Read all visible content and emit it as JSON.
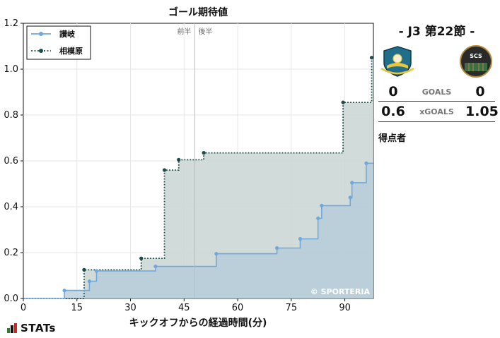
{
  "chart_data": {
    "type": "line",
    "title": "ゴール期待値",
    "xlabel": "キックオフからの経過時間(分)",
    "ylabel": "",
    "xlim": [
      0,
      98
    ],
    "ylim": [
      0,
      1.2
    ],
    "x_ticks": [
      "0",
      "15",
      "30",
      "45",
      "60",
      "75",
      "90"
    ],
    "x_tick_values": [
      0,
      15,
      30,
      45,
      60,
      75,
      90
    ],
    "y_ticks": [
      "0.0",
      "0.2",
      "0.4",
      "0.6",
      "0.8",
      "1.0",
      "1.2"
    ],
    "y_tick_values": [
      0,
      0.2,
      0.4,
      0.6,
      0.8,
      1.0,
      1.2
    ],
    "halftime": 48,
    "halftime_labels": {
      "first": "前半",
      "second": "後半"
    },
    "watermark": "© SPORTERIA",
    "legend_position": "top-left",
    "grid": true,
    "series": [
      {
        "name": "讃岐",
        "style": "solid",
        "color": "#6fa8dc",
        "fill": "#b3cbd9",
        "end": 0.59,
        "points": [
          [
            11.5,
            0.035
          ],
          [
            18.5,
            0.075
          ],
          [
            20.5,
            0.12
          ],
          [
            37.0,
            0.14
          ],
          [
            54.0,
            0.195
          ],
          [
            71.0,
            0.22
          ],
          [
            77.5,
            0.26
          ],
          [
            82.5,
            0.35
          ],
          [
            83.5,
            0.405
          ],
          [
            91.5,
            0.44
          ],
          [
            92.0,
            0.505
          ],
          [
            96.0,
            0.59
          ]
        ]
      },
      {
        "name": "相模原",
        "style": "dotted",
        "color": "#1e4d4a",
        "fill": "#c9d5d3",
        "end": 1.05,
        "points": [
          [
            17.0,
            0.125
          ],
          [
            33.0,
            0.175
          ],
          [
            39.5,
            0.56
          ],
          [
            43.5,
            0.605
          ],
          [
            50.5,
            0.635
          ],
          [
            89.5,
            0.855
          ],
          [
            97.5,
            1.05
          ]
        ]
      }
    ]
  },
  "match": {
    "title": "- J3 第22節 -",
    "home_goals": "0",
    "away_goals": "0",
    "goals_label": "GOALS",
    "home_xg": "0.6",
    "away_xg": "1.05",
    "xg_label": "xGOALS",
    "scorers_label": "得点者",
    "home_crest": "kamatamare-crest-icon",
    "away_crest": "scs-crest-icon",
    "away_crest_text": "SCS"
  },
  "footer": {
    "logo_text": "STATs",
    "logo_icon": "bar-chart-icon"
  }
}
